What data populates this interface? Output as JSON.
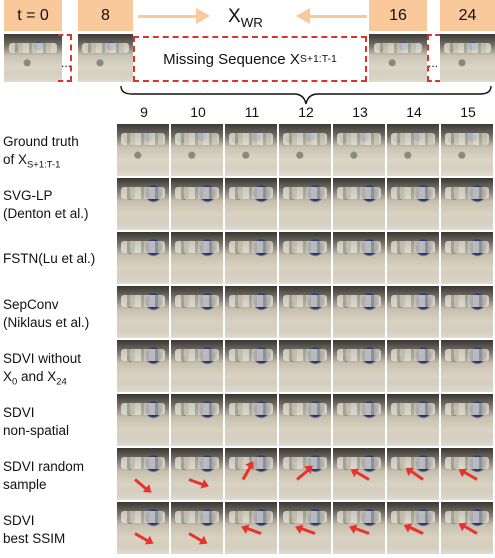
{
  "header": {
    "frames": [
      {
        "label": "t = 0"
      },
      {
        "label": "8"
      },
      {
        "label": "16"
      },
      {
        "label": "24"
      }
    ],
    "xwr_base": "X",
    "xwr_sub": "WR",
    "ellipsis_left": "...",
    "ellipsis_right": "...",
    "missing_text": "Missing Sequence X",
    "missing_sub": "S+1:T-1"
  },
  "columns": [
    "9",
    "10",
    "11",
    "12",
    "13",
    "14",
    "15"
  ],
  "rows": [
    {
      "line1": "Ground truth",
      "line2": "of X",
      "sub": "S+1:T-1",
      "type": "gt"
    },
    {
      "line1": "SVG-LP",
      "line2": "(Denton et al.)",
      "sub": "",
      "type": "pred"
    },
    {
      "line1": "FSTN(Lu et al.)",
      "line2": "",
      "sub": "",
      "type": "pred"
    },
    {
      "line1": "SepConv",
      "line2": "(Niklaus et al.)",
      "sub": "",
      "type": "pred"
    },
    {
      "line1": "SDVI without",
      "line2": "X",
      "sub": "0",
      "line2b": " and X",
      "sub2": "24",
      "type": "pred"
    },
    {
      "line1": "SDVI",
      "line2": "non-spatial",
      "sub": "",
      "type": "pred"
    },
    {
      "line1": "SDVI random",
      "line2": "sample",
      "sub": "",
      "type": "arrow"
    },
    {
      "line1": "SDVI",
      "line2": "best SSIM",
      "sub": "",
      "type": "arrow"
    }
  ],
  "colors": {
    "accent_box": "#f9c89b",
    "dashed_red": "#d9342b",
    "motion_arrow": "#e8322e"
  }
}
